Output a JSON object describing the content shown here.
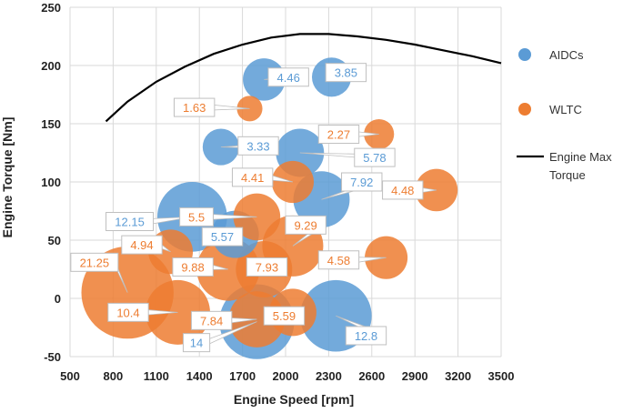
{
  "chart_data": {
    "type": "scatter",
    "subtype": "bubble",
    "title": "",
    "xlabel": "Engine Speed [rpm]",
    "ylabel": "Engine Torque [Nm]",
    "xlim": [
      500,
      3500
    ],
    "ylim": [
      -50,
      250
    ],
    "xticks": [
      500,
      800,
      1100,
      1400,
      1700,
      2000,
      2300,
      2600,
      2900,
      3200,
      3500
    ],
    "yticks": [
      -50,
      0,
      50,
      100,
      150,
      200,
      250
    ],
    "x_tick_labels": [
      "500",
      "800",
      "1100",
      "1400",
      "1700",
      "2000",
      "2300",
      "2600",
      "2900",
      "3200",
      "3500"
    ],
    "y_tick_labels": [
      "-50",
      "0",
      "50",
      "100",
      "150",
      "200",
      "250"
    ],
    "grid": true,
    "legend_position": "right",
    "series": [
      {
        "name": "AIDCs",
        "color": "#5B9BD5",
        "points": [
          {
            "x": 1850,
            "y": 188,
            "size": 4.46
          },
          {
            "x": 2320,
            "y": 190,
            "size": 3.85
          },
          {
            "x": 1550,
            "y": 130,
            "size": 3.33
          },
          {
            "x": 2100,
            "y": 125,
            "size": 5.78
          },
          {
            "x": 2250,
            "y": 85,
            "size": 7.92
          },
          {
            "x": 1350,
            "y": 70,
            "size": 12.15
          },
          {
            "x": 1650,
            "y": 55,
            "size": 5.57
          },
          {
            "x": 1800,
            "y": -20,
            "size": 14
          },
          {
            "x": 2350,
            "y": -15,
            "size": 12.8
          }
        ]
      },
      {
        "name": "WLTC",
        "color": "#ED7D31",
        "points": [
          {
            "x": 1750,
            "y": 163,
            "size": 1.63
          },
          {
            "x": 2650,
            "y": 141,
            "size": 2.27
          },
          {
            "x": 2050,
            "y": 100,
            "size": 4.41
          },
          {
            "x": 3050,
            "y": 93,
            "size": 4.48
          },
          {
            "x": 1800,
            "y": 70,
            "size": 5.5
          },
          {
            "x": 2050,
            "y": 45,
            "size": 9.29
          },
          {
            "x": 1200,
            "y": 40,
            "size": 4.94
          },
          {
            "x": 900,
            "y": 5,
            "size": 21.25
          },
          {
            "x": 1600,
            "y": 25,
            "size": 9.88
          },
          {
            "x": 1850,
            "y": 25,
            "size": 7.93
          },
          {
            "x": 2700,
            "y": 35,
            "size": 4.58
          },
          {
            "x": 1250,
            "y": -12,
            "size": 10.4
          },
          {
            "x": 1800,
            "y": -18,
            "size": 7.84
          },
          {
            "x": 2050,
            "y": -12,
            "size": 5.59
          }
        ]
      },
      {
        "name": "Engine Max Torque",
        "type": "line",
        "color": "#000000",
        "x": [
          750,
          900,
          1100,
          1300,
          1500,
          1700,
          1900,
          2100,
          2300,
          2500,
          2700,
          2900,
          3100,
          3300,
          3500
        ],
        "y": [
          152,
          169,
          186,
          199,
          210,
          218,
          224,
          227,
          227,
          225,
          222,
          218,
          213,
          208,
          202
        ]
      }
    ],
    "data_labels": [
      {
        "text": "4.46",
        "series": "AIDCs",
        "x": 2020,
        "y": 190
      },
      {
        "text": "3.85",
        "series": "AIDCs",
        "x": 2420,
        "y": 194
      },
      {
        "text": "3.33",
        "series": "AIDCs",
        "x": 1810,
        "y": 131
      },
      {
        "text": "5.78",
        "series": "AIDCs",
        "x": 2620,
        "y": 121
      },
      {
        "text": "7.92",
        "series": "AIDCs",
        "x": 2530,
        "y": 100
      },
      {
        "text": "12.15",
        "series": "AIDCs",
        "x": 915,
        "y": 66
      },
      {
        "text": "5.57",
        "series": "AIDCs",
        "x": 1560,
        "y": 53
      },
      {
        "text": "14",
        "series": "AIDCs",
        "x": 1380,
        "y": -38
      },
      {
        "text": "12.8",
        "series": "AIDCs",
        "x": 2560,
        "y": -32
      },
      {
        "text": "1.63",
        "series": "WLTC",
        "x": 1365,
        "y": 164
      },
      {
        "text": "2.27",
        "series": "WLTC",
        "x": 2370,
        "y": 141
      },
      {
        "text": "4.41",
        "series": "WLTC",
        "x": 1770,
        "y": 104
      },
      {
        "text": "4.48",
        "series": "WLTC",
        "x": 2815,
        "y": 93
      },
      {
        "text": "5.5",
        "series": "WLTC",
        "x": 1380,
        "y": 70
      },
      {
        "text": "9.29",
        "series": "WLTC",
        "x": 2140,
        "y": 63
      },
      {
        "text": "4.94",
        "series": "WLTC",
        "x": 1000,
        "y": 46
      },
      {
        "text": "21.25",
        "series": "WLTC",
        "x": 670,
        "y": 31
      },
      {
        "text": "9.88",
        "series": "WLTC",
        "x": 1355,
        "y": 27
      },
      {
        "text": "7.93",
        "series": "WLTC",
        "x": 1870,
        "y": 27
      },
      {
        "text": "4.58",
        "series": "WLTC",
        "x": 2370,
        "y": 33
      },
      {
        "text": "10.4",
        "series": "WLTC",
        "x": 905,
        "y": -12
      },
      {
        "text": "7.84",
        "series": "WLTC",
        "x": 1485,
        "y": -19
      },
      {
        "text": "5.59",
        "series": "WLTC",
        "x": 1990,
        "y": -15
      }
    ]
  }
}
